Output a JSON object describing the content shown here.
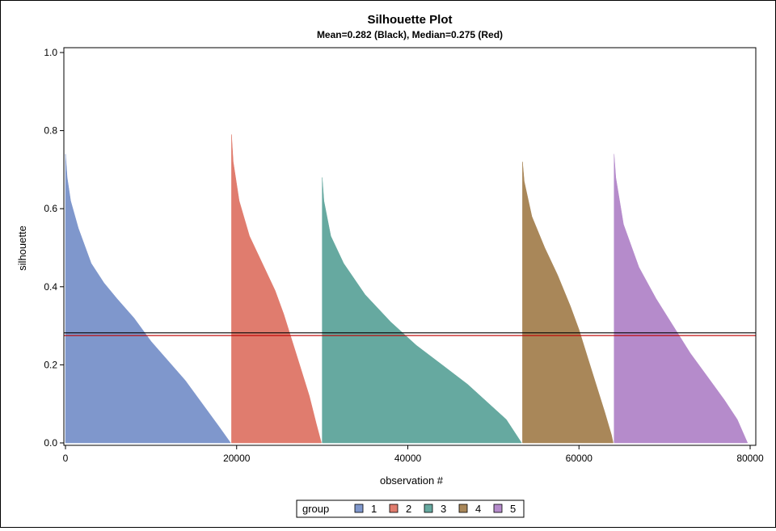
{
  "chart_data": {
    "type": "area",
    "title": "Silhouette Plot",
    "subtitle": "Mean=0.282 (Black), Median=0.275 (Red)",
    "xlabel": "observation #",
    "ylabel": "silhouette",
    "xlim": [
      0,
      80000
    ],
    "ylim": [
      0,
      1.0
    ],
    "x_ticks": [
      0,
      20000,
      40000,
      60000,
      80000
    ],
    "x_tick_labels": [
      "0",
      "20000",
      "40000",
      "60000",
      "80000"
    ],
    "y_ticks": [
      0,
      0.2,
      0.4,
      0.6,
      0.8,
      1.0
    ],
    "y_tick_labels": [
      "0.0",
      "0.2",
      "0.4",
      "0.6",
      "0.8",
      "1.0"
    ],
    "grid": false,
    "legend_title": "group",
    "legend_placement": "bottom",
    "reference_lines": [
      {
        "name": "Mean",
        "value": 0.282,
        "color": "#000000"
      },
      {
        "name": "Median",
        "value": 0.275,
        "color": "#c00000"
      }
    ],
    "series": [
      {
        "name": "1",
        "color": "#7f97cc",
        "points": [
          [
            0,
            0.74
          ],
          [
            200,
            0.68
          ],
          [
            600,
            0.62
          ],
          [
            1500,
            0.55
          ],
          [
            3000,
            0.46
          ],
          [
            4500,
            0.41
          ],
          [
            6000,
            0.37
          ],
          [
            8000,
            0.32
          ],
          [
            10000,
            0.26
          ],
          [
            12000,
            0.21
          ],
          [
            14000,
            0.16
          ],
          [
            16000,
            0.1
          ],
          [
            18000,
            0.04
          ],
          [
            19300,
            0.0
          ]
        ]
      },
      {
        "name": "2",
        "color": "#e07c6e",
        "points": [
          [
            19400,
            0.79
          ],
          [
            19600,
            0.72
          ],
          [
            20300,
            0.62
          ],
          [
            21500,
            0.53
          ],
          [
            23000,
            0.46
          ],
          [
            24500,
            0.39
          ],
          [
            25500,
            0.33
          ],
          [
            26500,
            0.26
          ],
          [
            27500,
            0.19
          ],
          [
            28500,
            0.12
          ],
          [
            29300,
            0.05
          ],
          [
            29900,
            0.0
          ]
        ]
      },
      {
        "name": "3",
        "color": "#66a9a0",
        "points": [
          [
            30000,
            0.68
          ],
          [
            30200,
            0.62
          ],
          [
            31000,
            0.53
          ],
          [
            32500,
            0.46
          ],
          [
            35000,
            0.38
          ],
          [
            38000,
            0.31
          ],
          [
            41000,
            0.25
          ],
          [
            44000,
            0.2
          ],
          [
            47000,
            0.15
          ],
          [
            49500,
            0.1
          ],
          [
            51500,
            0.06
          ],
          [
            53300,
            0.0
          ]
        ]
      },
      {
        "name": "4",
        "color": "#a98759",
        "points": [
          [
            53400,
            0.72
          ],
          [
            53600,
            0.67
          ],
          [
            54500,
            0.58
          ],
          [
            56000,
            0.5
          ],
          [
            57500,
            0.43
          ],
          [
            59000,
            0.35
          ],
          [
            60000,
            0.29
          ],
          [
            61000,
            0.22
          ],
          [
            62000,
            0.15
          ],
          [
            63000,
            0.08
          ],
          [
            63800,
            0.02
          ],
          [
            64000,
            0.0
          ]
        ]
      },
      {
        "name": "5",
        "color": "#b58bcb",
        "points": [
          [
            64100,
            0.74
          ],
          [
            64300,
            0.68
          ],
          [
            65200,
            0.56
          ],
          [
            67000,
            0.45
          ],
          [
            69000,
            0.37
          ],
          [
            71000,
            0.3
          ],
          [
            73000,
            0.23
          ],
          [
            75000,
            0.17
          ],
          [
            77000,
            0.11
          ],
          [
            78500,
            0.06
          ],
          [
            79700,
            0.0
          ]
        ]
      }
    ]
  }
}
